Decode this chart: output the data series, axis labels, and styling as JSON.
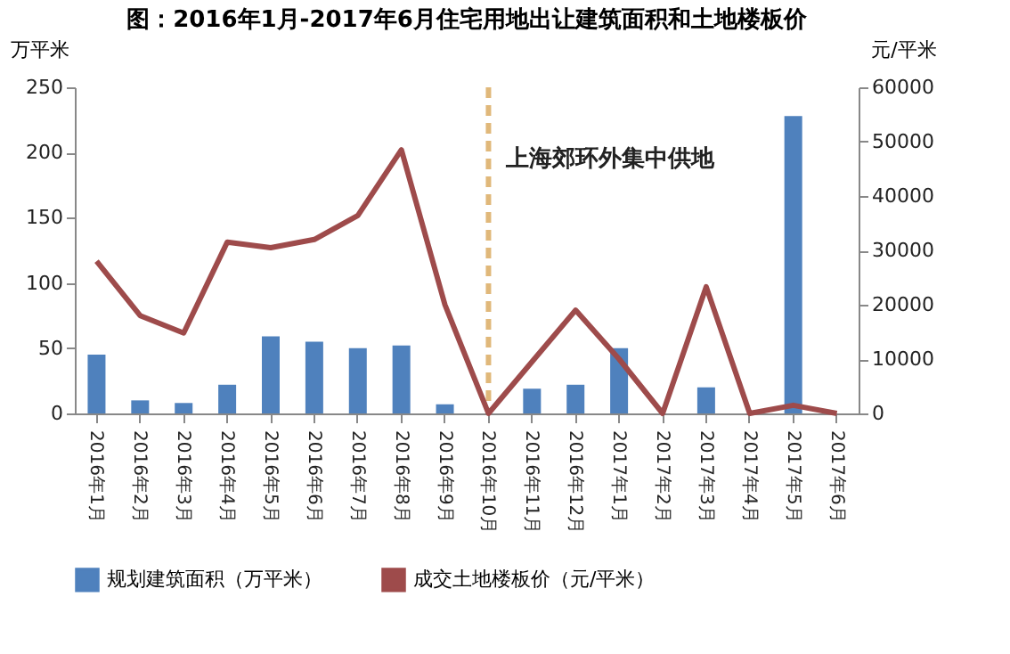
{
  "chart_data": {
    "type": "bar",
    "title": "图：2016年1月-2017年6月住宅用地出让建筑面积和土地楼板价",
    "ylabel": "万平米",
    "y2label": "元/平米",
    "categories": [
      "2016年1月",
      "2016年2月",
      "2016年3月",
      "2016年4月",
      "2016年5月",
      "2016年6月",
      "2016年7月",
      "2016年8月",
      "2016年9月",
      "2016年10月",
      "2016年11月",
      "2016年12月",
      "2017年1月",
      "2017年2月",
      "2017年3月",
      "2017年4月",
      "2017年5月",
      "2017年6月"
    ],
    "series": [
      {
        "name": "规划建筑面积（万平米）",
        "color": "#4f81bd",
        "values": [
          45,
          10,
          8,
          22,
          59,
          55,
          50,
          52,
          7,
          0,
          19,
          22,
          50,
          0,
          20,
          0,
          228,
          0
        ]
      },
      {
        "name": "成交土地楼板价（元/平米）",
        "type": "line",
        "axis": "y2",
        "color": "#9e4b4b",
        "values": [
          28000,
          18000,
          14800,
          31500,
          30500,
          32000,
          36400,
          48500,
          20000,
          0,
          9500,
          19000,
          10000,
          0,
          23300,
          0,
          1500,
          0
        ]
      }
    ],
    "ylim": [
      0,
      250
    ],
    "yticks": [
      0,
      50,
      100,
      150,
      200,
      250
    ],
    "y2lim": [
      0,
      60000
    ],
    "y2ticks": [
      0,
      10000,
      20000,
      30000,
      40000,
      50000,
      60000
    ],
    "ref_lines": [
      {
        "axis": "x",
        "value": "2016年10月",
        "label": "上海郊环外集中供地",
        "color": "#e0b87a",
        "line_style": "dashed"
      }
    ],
    "grid": false,
    "legend": "bottom",
    "marker": "none",
    "line_style": "solid"
  }
}
